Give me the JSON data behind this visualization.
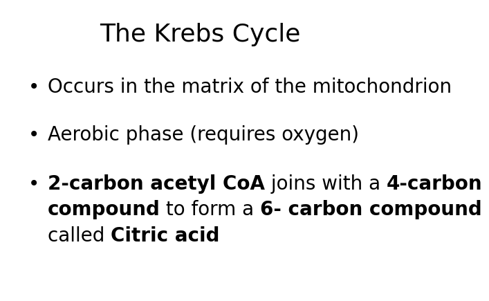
{
  "title": "The Krebs Cycle",
  "title_fontsize": 26,
  "background_color": "#ffffff",
  "text_color": "#000000",
  "bullet_char": "•",
  "bullet_fontsize": 20,
  "body_fontsize": 20,
  "bullet1_text": "Occurs in the matrix of the mitochondrion",
  "bullet2_text": "Aerobic phase (requires oxygen)",
  "bullet3_line1_segments": [
    {
      "text": "2-carbon acetyl CoA",
      "bold": true
    },
    {
      "text": " joins with a ",
      "bold": false
    },
    {
      "text": "4-carbon",
      "bold": true
    }
  ],
  "bullet3_line2_segments": [
    {
      "text": "compound",
      "bold": true
    },
    {
      "text": " to form a ",
      "bold": false
    },
    {
      "text": "6- carbon compound",
      "bold": true
    }
  ],
  "bullet3_line3_segments": [
    {
      "text": "called ",
      "bold": false
    },
    {
      "text": "Citric acid",
      "bold": true
    }
  ]
}
